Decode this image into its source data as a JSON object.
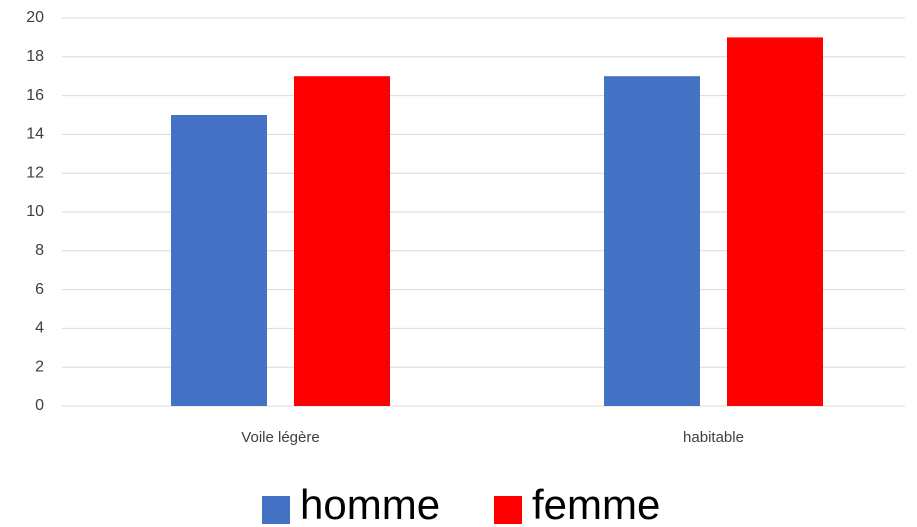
{
  "chart_data": {
    "type": "bar",
    "categories": [
      "Voile légère",
      "habitable"
    ],
    "series": [
      {
        "name": "homme",
        "color": "#4472c4",
        "values": [
          15,
          17
        ]
      },
      {
        "name": "femme",
        "color": "#ff0000",
        "values": [
          17,
          19
        ]
      }
    ],
    "ylim": [
      0,
      20
    ],
    "yticks": [
      0,
      2,
      4,
      6,
      8,
      10,
      12,
      14,
      16,
      18,
      20
    ],
    "grid": true,
    "legend": "bottom"
  }
}
